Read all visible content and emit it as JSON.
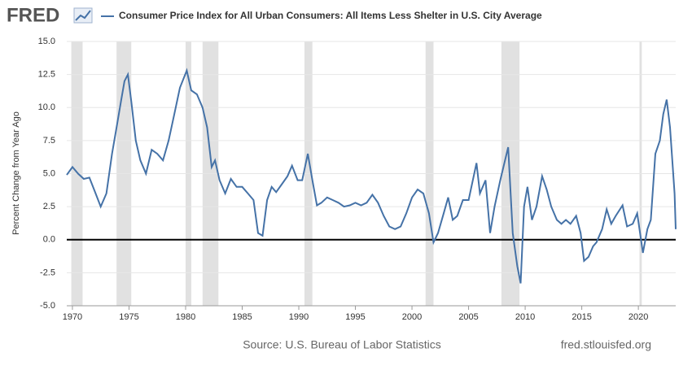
{
  "logo": "FRED",
  "chart_data": {
    "type": "line",
    "ylabel": "Percent Change from Year Ago",
    "source": "Source: U.S. Bureau of Labor Statistics",
    "site": "fred.stlouisfed.org",
    "xlim": [
      1969.5,
      2023.3
    ],
    "ylim": [
      -5,
      15
    ],
    "xticks": [
      1970,
      1975,
      1980,
      1985,
      1990,
      1995,
      2000,
      2005,
      2010,
      2015,
      2020
    ],
    "yticks": [
      {
        "value": -5,
        "label": "-5.0"
      },
      {
        "value": -2.5,
        "label": "-2.5"
      },
      {
        "value": 0,
        "label": "0.0"
      },
      {
        "value": 2.5,
        "label": "2.5"
      },
      {
        "value": 5,
        "label": "5.0"
      },
      {
        "value": 7.5,
        "label": "7.5"
      },
      {
        "value": 10,
        "label": "10.0"
      },
      {
        "value": 12.5,
        "label": "12.5"
      },
      {
        "value": 15,
        "label": "15.0"
      }
    ],
    "grid": true,
    "recessions": [
      [
        1969.9,
        1970.9
      ],
      [
        1973.9,
        1975.2
      ],
      [
        1980.0,
        1980.5
      ],
      [
        1981.5,
        1982.9
      ],
      [
        1990.5,
        1991.2
      ],
      [
        2001.2,
        2001.9
      ],
      [
        2007.9,
        2009.5
      ],
      [
        2020.1,
        2020.3
      ]
    ],
    "x": [
      1969.5,
      1970.0,
      1970.5,
      1971.0,
      1971.5,
      1972.0,
      1972.5,
      1973.0,
      1973.5,
      1973.9,
      1974.3,
      1974.6,
      1974.9,
      1975.2,
      1975.6,
      1976.0,
      1976.5,
      1977.0,
      1977.5,
      1978.0,
      1978.5,
      1979.0,
      1979.5,
      1980.1,
      1980.5,
      1981.0,
      1981.5,
      1981.9,
      1982.3,
      1982.6,
      1983.0,
      1983.5,
      1984.0,
      1984.5,
      1985.0,
      1985.5,
      1986.0,
      1986.4,
      1986.8,
      1987.2,
      1987.6,
      1988.0,
      1988.5,
      1989.0,
      1989.4,
      1989.9,
      1990.3,
      1990.8,
      1991.2,
      1991.6,
      1992.0,
      1992.5,
      1993.0,
      1993.5,
      1994.0,
      1994.5,
      1995.0,
      1995.5,
      1996.0,
      1996.5,
      1997.0,
      1997.5,
      1998.0,
      1998.5,
      1999.0,
      1999.5,
      2000.0,
      2000.5,
      2001.0,
      2001.5,
      2001.9,
      2002.3,
      2002.8,
      2003.2,
      2003.6,
      2004.0,
      2004.5,
      2005.0,
      2005.7,
      2006.0,
      2006.5,
      2006.9,
      2007.3,
      2007.8,
      2008.5,
      2008.9,
      2009.3,
      2009.6,
      2009.9,
      2010.2,
      2010.6,
      2011.0,
      2011.5,
      2011.9,
      2012.3,
      2012.8,
      2013.2,
      2013.6,
      2014.0,
      2014.5,
      2014.9,
      2015.2,
      2015.6,
      2016.0,
      2016.3,
      2016.8,
      2017.2,
      2017.6,
      2018.0,
      2018.6,
      2019.0,
      2019.5,
      2019.9,
      2020.4,
      2020.8,
      2021.1,
      2021.5,
      2021.9,
      2022.2,
      2022.5,
      2022.8,
      2023.0,
      2023.2,
      2023.3
    ],
    "series": [
      {
        "name": "Consumer Price Index for All Urban Consumers: All Items Less Shelter in U.S. City Average",
        "color": "#4572a7",
        "values": [
          4.9,
          5.5,
          5.0,
          4.6,
          4.7,
          3.6,
          2.5,
          3.5,
          6.5,
          8.5,
          10.5,
          12.0,
          12.5,
          10.5,
          7.5,
          6.0,
          5.0,
          6.8,
          6.5,
          6.0,
          7.5,
          9.5,
          11.5,
          12.8,
          11.3,
          11.0,
          10.0,
          8.5,
          5.5,
          6.0,
          4.5,
          3.5,
          4.6,
          4.0,
          4.0,
          3.5,
          3.0,
          0.5,
          0.3,
          3.0,
          4.0,
          3.6,
          4.2,
          4.8,
          5.6,
          4.5,
          4.5,
          6.5,
          4.5,
          2.6,
          2.8,
          3.2,
          3.0,
          2.8,
          2.5,
          2.6,
          2.8,
          2.6,
          2.8,
          3.4,
          2.8,
          1.8,
          1.0,
          0.8,
          1.0,
          2.0,
          3.2,
          3.8,
          3.5,
          2.0,
          -0.2,
          0.5,
          2.0,
          3.2,
          1.5,
          1.8,
          3.0,
          3.0,
          5.8,
          3.5,
          4.5,
          0.5,
          2.5,
          4.5,
          7.0,
          0.5,
          -2.0,
          -3.3,
          2.5,
          4.0,
          1.5,
          2.5,
          4.8,
          3.8,
          2.5,
          1.5,
          1.2,
          1.5,
          1.2,
          1.8,
          0.5,
          -1.6,
          -1.3,
          -0.5,
          -0.2,
          0.8,
          2.3,
          1.2,
          1.8,
          2.6,
          1.0,
          1.2,
          2.0,
          -1.0,
          0.8,
          1.5,
          6.5,
          7.5,
          9.5,
          10.6,
          8.5,
          6.0,
          3.5,
          0.8
        ]
      }
    ]
  }
}
